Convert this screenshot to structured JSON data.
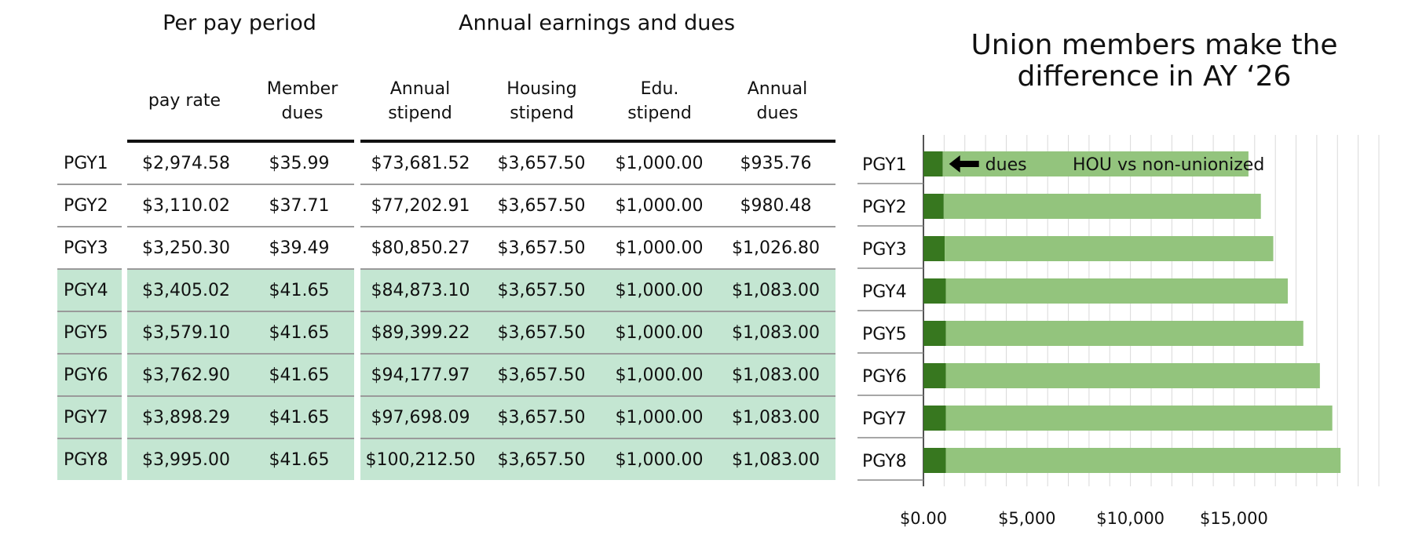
{
  "table": {
    "group_headers": {
      "per_pay_period": "Per pay period",
      "annual": "Annual earnings and dues"
    },
    "column_headers": [
      "pay rate",
      "Member\ndues",
      "Annual\nstipend",
      "Housing\nstipend",
      "Edu.\nstipend",
      "Annual\ndues"
    ],
    "rows": [
      {
        "label": "PGY1",
        "pay_rate": "$2,974.58",
        "member_dues": "$35.99",
        "annual_stipend": "$73,681.52",
        "housing": "$3,657.50",
        "edu": "$1,000.00",
        "annual_dues": "$935.76"
      },
      {
        "label": "PGY2",
        "pay_rate": "$3,110.02",
        "member_dues": "$37.71",
        "annual_stipend": "$77,202.91",
        "housing": "$3,657.50",
        "edu": "$1,000.00",
        "annual_dues": "$980.48"
      },
      {
        "label": "PGY3",
        "pay_rate": "$3,250.30",
        "member_dues": "$39.49",
        "annual_stipend": "$80,850.27",
        "housing": "$3,657.50",
        "edu": "$1,000.00",
        "annual_dues": "$1,026.80"
      },
      {
        "label": "PGY4",
        "pay_rate": "$3,405.02",
        "member_dues": "$41.65",
        "annual_stipend": "$84,873.10",
        "housing": "$3,657.50",
        "edu": "$1,000.00",
        "annual_dues": "$1,083.00"
      },
      {
        "label": "PGY5",
        "pay_rate": "$3,579.10",
        "member_dues": "$41.65",
        "annual_stipend": "$89,399.22",
        "housing": "$3,657.50",
        "edu": "$1,000.00",
        "annual_dues": "$1,083.00"
      },
      {
        "label": "PGY6",
        "pay_rate": "$3,762.90",
        "member_dues": "$41.65",
        "annual_stipend": "$94,177.97",
        "housing": "$3,657.50",
        "edu": "$1,000.00",
        "annual_dues": "$1,083.00"
      },
      {
        "label": "PGY7",
        "pay_rate": "$3,898.29",
        "member_dues": "$41.65",
        "annual_stipend": "$97,698.09",
        "housing": "$3,657.50",
        "edu": "$1,000.00",
        "annual_dues": "$1,083.00"
      },
      {
        "label": "PGY8",
        "pay_rate": "$3,995.00",
        "member_dues": "$41.65",
        "annual_stipend": "$100,212.50",
        "housing": "$3,657.50",
        "edu": "$1,000.00",
        "annual_dues": "$1,083.00"
      }
    ],
    "highlight_rows_from": 3,
    "highlight_color": "#c4e6d2"
  },
  "chart_data": {
    "type": "bar",
    "title": "Union members make the\ndifference in AY ‘26",
    "categories": [
      "PGY1",
      "PGY2",
      "PGY3",
      "PGY4",
      "PGY5",
      "PGY6",
      "PGY7",
      "PGY8"
    ],
    "series": [
      {
        "name": "dues",
        "values": [
          935.76,
          980.48,
          1026.8,
          1083,
          1083,
          1083,
          1083,
          1083
        ],
        "color": "#37771f"
      },
      {
        "name": "HOU vs non-unionized",
        "values": [
          15700,
          16300,
          16900,
          17600,
          18350,
          19150,
          19750,
          20150
        ],
        "color": "#93c47d"
      }
    ],
    "stacked": true,
    "orientation": "horizontal",
    "xlim": [
      0,
      22000
    ],
    "xticks": [
      0,
      5000,
      10000,
      15000
    ],
    "xtick_labels": [
      "$0.00",
      "$5,000",
      "$10,000",
      "$15,000"
    ],
    "grid": true,
    "annotations": {
      "dues_label": "dues",
      "diff_label": "HOU vs non-unionized"
    }
  }
}
